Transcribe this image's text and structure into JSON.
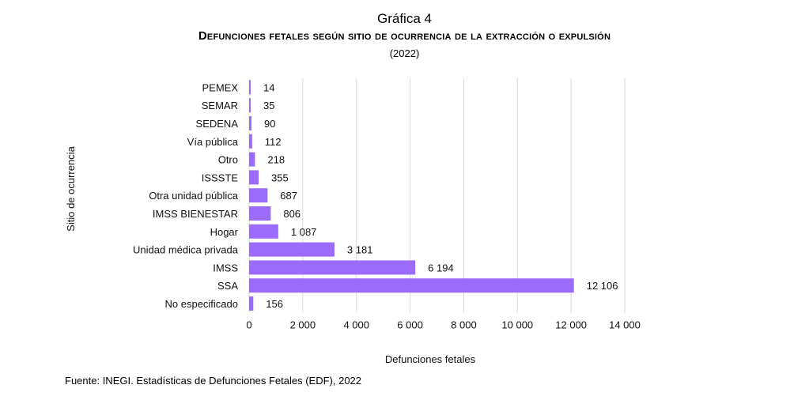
{
  "figure": {
    "caption": "Gráfica 4",
    "title": "Defunciones fetales según sitio de ocurrencia de la extracción o expulsión",
    "subtitle": "(2022)",
    "source": "Fuente: INEGI. Estadísticas de Defunciones Fetales (EDF), 2022"
  },
  "chart_data": {
    "type": "bar",
    "orientation": "horizontal",
    "title": "Defunciones fetales según sitio de ocurrencia de la extracción o expulsión",
    "xlabel": "Defunciones fetales",
    "ylabel": "Sitio de ocurrencia",
    "categories": [
      "PEMEX",
      "SEMAR",
      "SEDENA",
      "Vía pública",
      "Otro",
      "ISSSTE",
      "Otra unidad pública",
      "IMSS BIENESTAR",
      "Hogar",
      "Unidad médica privada",
      "IMSS",
      "SSA",
      "No especificado"
    ],
    "values": [
      14,
      35,
      90,
      112,
      218,
      355,
      687,
      806,
      1087,
      3181,
      6194,
      12106,
      156
    ],
    "value_labels": [
      "14",
      "35",
      "90",
      "112",
      "218",
      "355",
      "687",
      "806",
      "1 087",
      "3 181",
      "6 194",
      "12 106",
      "156"
    ],
    "xlim": [
      0,
      14000
    ],
    "xticks": [
      0,
      2000,
      4000,
      6000,
      8000,
      10000,
      12000,
      14000
    ],
    "xtick_labels": [
      "0",
      "2 000",
      "4 000",
      "6 000",
      "8 000",
      "10 000",
      "12 000",
      "14 000"
    ],
    "grid": true,
    "legend": "none",
    "bar_color": "#9b6bfb",
    "grid_color": "#d9d9d9"
  }
}
